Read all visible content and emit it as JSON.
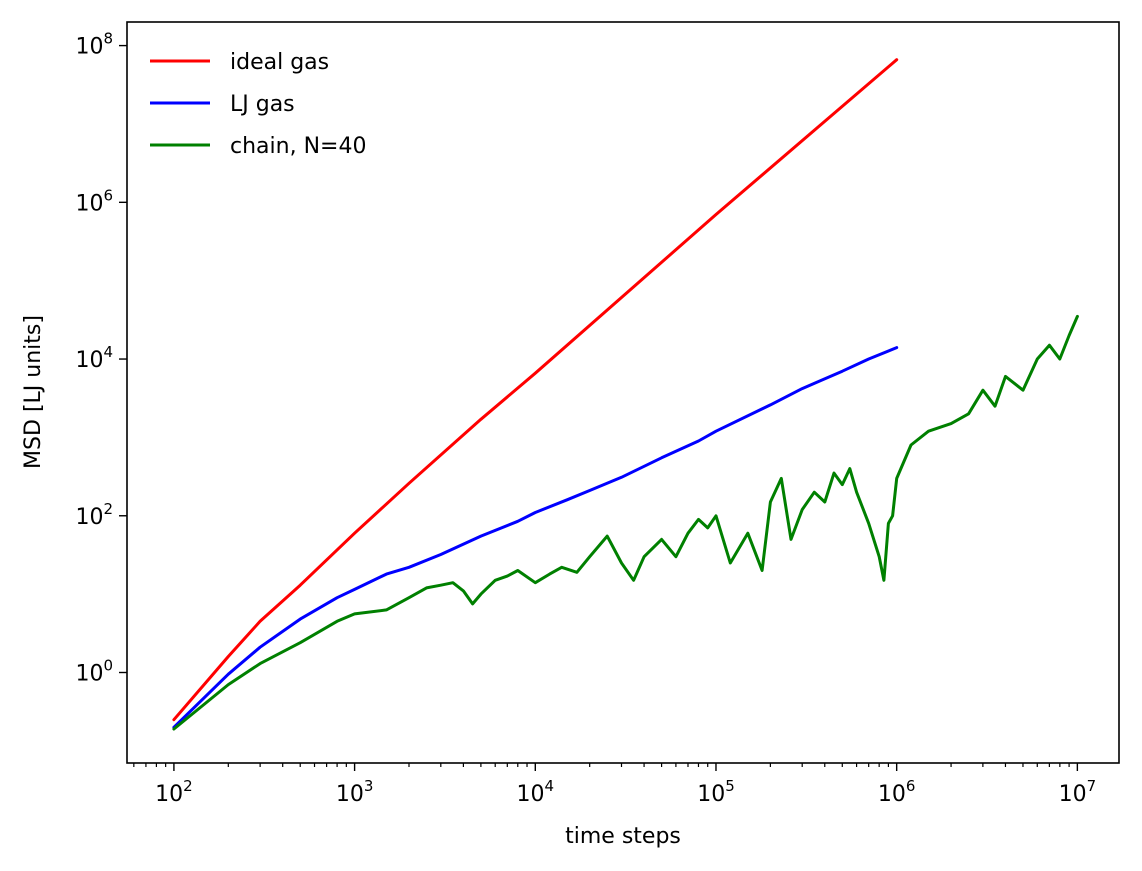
{
  "chart_data": {
    "type": "line",
    "title": "",
    "xlabel": "time steps",
    "ylabel": "MSD [LJ units]",
    "xscale": "log",
    "yscale": "log",
    "xlim": [
      55,
      17000000
    ],
    "ylim": [
      0.07,
      200000000
    ],
    "x_ticks": [
      {
        "value": 100,
        "base": "10",
        "exp": "2"
      },
      {
        "value": 1000,
        "base": "10",
        "exp": "3"
      },
      {
        "value": 10000,
        "base": "10",
        "exp": "4"
      },
      {
        "value": 100000,
        "base": "10",
        "exp": "5"
      },
      {
        "value": 1000000,
        "base": "10",
        "exp": "6"
      },
      {
        "value": 10000000,
        "base": "10",
        "exp": "7"
      }
    ],
    "y_ticks": [
      {
        "value": 1,
        "base": "10",
        "exp": "0"
      },
      {
        "value": 100,
        "base": "10",
        "exp": "2"
      },
      {
        "value": 10000,
        "base": "10",
        "exp": "4"
      },
      {
        "value": 1000000,
        "base": "10",
        "exp": "6"
      },
      {
        "value": 100000000,
        "base": "10",
        "exp": "8"
      }
    ],
    "grid": false,
    "legend_position": "top-left",
    "series": [
      {
        "name": "ideal gas",
        "color": "#ff0000",
        "x": [
          100,
          200,
          300,
          500,
          1000,
          2000,
          5000,
          10000,
          100000,
          1000000
        ],
        "y": [
          0.25,
          1.6,
          4.5,
          13,
          60,
          260,
          1700,
          6600,
          700000,
          66000000
        ]
      },
      {
        "name": "LJ gas",
        "color": "#0000ff",
        "x": [
          100,
          200,
          300,
          500,
          800,
          1000,
          1500,
          2000,
          3000,
          5000,
          8000,
          10000,
          15000,
          20000,
          30000,
          50000,
          80000,
          100000,
          200000,
          300000,
          500000,
          700000,
          1000000
        ],
        "y": [
          0.2,
          0.95,
          2.1,
          4.8,
          9,
          11.5,
          18,
          22,
          32,
          55,
          85,
          110,
          160,
          210,
          310,
          550,
          900,
          1200,
          2600,
          4200,
          7000,
          10000,
          14000
        ]
      },
      {
        "name": "chain, N=40",
        "color": "#008000",
        "x": [
          100,
          200,
          300,
          500,
          800,
          1000,
          1500,
          2000,
          2500,
          3000,
          3500,
          4000,
          4500,
          5000,
          6000,
          7000,
          8000,
          10000,
          12000,
          14000,
          17000,
          20000,
          25000,
          30000,
          35000,
          40000,
          50000,
          60000,
          70000,
          80000,
          90000,
          100000,
          120000,
          150000,
          180000,
          200000,
          230000,
          260000,
          300000,
          350000,
          400000,
          450000,
          500000,
          550000,
          600000,
          700000,
          800000,
          850000,
          900000,
          950000,
          1000000,
          1200000,
          1500000,
          2000000,
          2500000,
          3000000,
          3500000,
          4000000,
          5000000,
          6000000,
          7000000,
          8000000,
          9000000,
          10000000
        ],
        "y": [
          0.19,
          0.7,
          1.3,
          2.4,
          4.5,
          5.6,
          6.3,
          9,
          12,
          13,
          14,
          11,
          7.5,
          10,
          15,
          17,
          20,
          14,
          18,
          22,
          19,
          30,
          55,
          25,
          15,
          30,
          50,
          30,
          60,
          90,
          70,
          100,
          25,
          60,
          20,
          150,
          300,
          50,
          120,
          200,
          150,
          350,
          250,
          400,
          200,
          80,
          30,
          15,
          80,
          100,
          300,
          800,
          1200,
          1500,
          2000,
          4000,
          2500,
          6000,
          4000,
          10000,
          15000,
          10000,
          20000,
          35000
        ]
      }
    ]
  }
}
